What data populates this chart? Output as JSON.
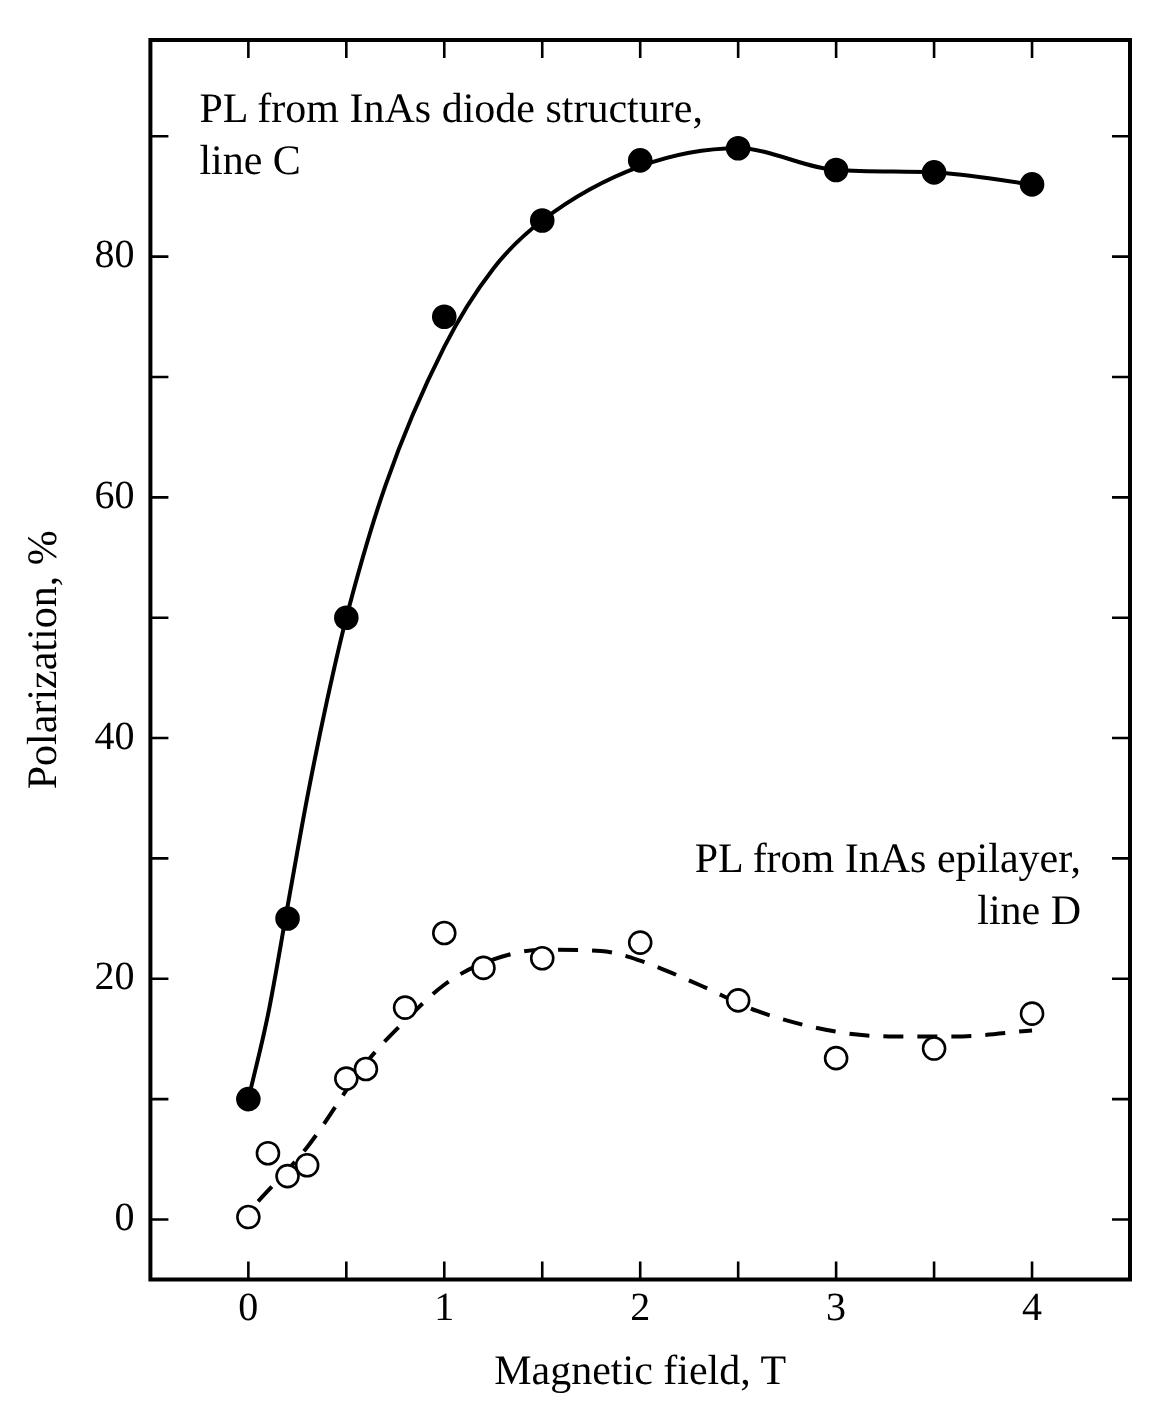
{
  "chart_data": {
    "type": "scatter",
    "xlabel": "Magnetic field, T",
    "ylabel": "Polarization, %",
    "xlim": [
      -0.5,
      4.5
    ],
    "ylim": [
      -5,
      98
    ],
    "xticks": [
      0,
      {
        "value": 0.5,
        "label": null
      },
      1,
      {
        "value": 1.5,
        "label": null
      },
      2,
      {
        "value": 2.5,
        "label": null
      },
      3,
      {
        "value": 3.5,
        "label": null
      },
      4
    ],
    "yticks": [
      0,
      {
        "value": 10,
        "label": null
      },
      20,
      {
        "value": 30,
        "label": null
      },
      40,
      {
        "value": 50,
        "label": null
      },
      60,
      {
        "value": 70,
        "label": null
      },
      80,
      {
        "value": 90,
        "label": null
      }
    ],
    "grid": false,
    "legend": false,
    "annotations": [
      "PL from InAs diode structure,\nline C",
      "PL from InAs epilayer,\nline D"
    ],
    "series": [
      {
        "type": "scatter",
        "marker": "circle",
        "color": "#000000",
        "x": [
          0,
          0.2,
          0.5,
          1.0,
          1.5,
          2.0,
          2.5,
          3.0,
          3.5,
          4.0
        ],
        "values": [
          10,
          25,
          50,
          75,
          83,
          88,
          89,
          87.2,
          87,
          86
        ]
      },
      {
        "type": "scatter",
        "marker": "circle",
        "color": "#000000",
        "x": [
          0,
          0.1,
          0.2,
          0.3,
          0.5,
          0.6,
          0.8,
          1.0,
          1.2,
          1.5,
          2.0,
          2.5,
          3.0,
          3.5,
          4.0
        ],
        "values": [
          0.2,
          5.5,
          3.6,
          4.5,
          11.7,
          12.5,
          17.6,
          23.8,
          20.9,
          21.7,
          23,
          18.2,
          13.4,
          14.2,
          17.1
        ]
      },
      {
        "type": "line",
        "line_style": "solid",
        "color": "#000000",
        "x": [
          0,
          0.1,
          0.2,
          0.3,
          0.4,
          0.5,
          0.7,
          1.0,
          1.25,
          1.5,
          2.0,
          2.5,
          3.0,
          3.5,
          4.0
        ],
        "values": [
          10,
          17,
          26,
          35,
          43,
          50,
          61,
          72.5,
          79,
          83,
          87.5,
          89,
          87.2,
          87,
          86
        ]
      },
      {
        "type": "line",
        "line_style": "dashed",
        "color": "#000000",
        "x": [
          0.05,
          0.3,
          0.6,
          0.8,
          1.0,
          1.2,
          1.5,
          1.8,
          2.0,
          2.3,
          2.6,
          3.0,
          3.3,
          3.6,
          4.0
        ],
        "values": [
          1.5,
          6,
          13,
          16.5,
          19.5,
          21.3,
          22.4,
          22.3,
          21.5,
          19.5,
          17.3,
          15.6,
          15.2,
          15.2,
          15.7
        ]
      }
    ]
  }
}
